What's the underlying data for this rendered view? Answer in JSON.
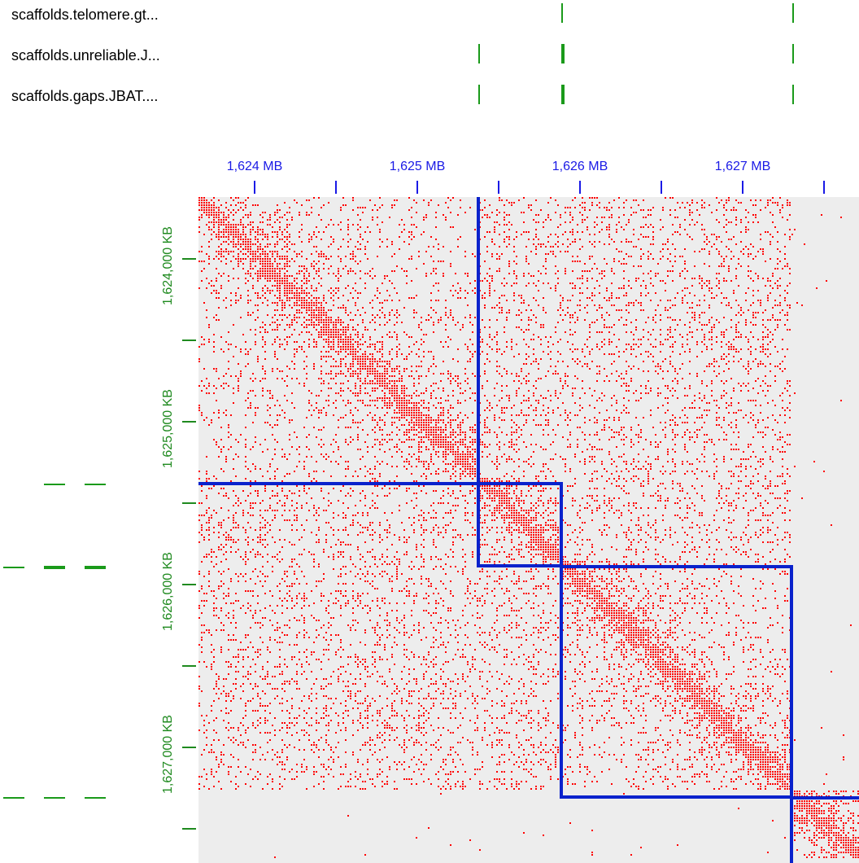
{
  "tracks": [
    {
      "label": "scaffolds.telomere.gt..."
    },
    {
      "label": "scaffolds.unreliable.J..."
    },
    {
      "label": "scaffolds.gaps.JBAT...."
    }
  ],
  "x_axis": {
    "labels": [
      "1,624 MB",
      "1,625 MB",
      "1,626 MB",
      "1,627 MB"
    ]
  },
  "y_axis": {
    "labels": [
      "1,624,000 KB",
      "1,625,000 KB",
      "1,626,000 KB",
      "1,627,000 KB"
    ]
  },
  "colors": {
    "contact": "#ff0000",
    "background": "#ededed",
    "scaffold_border": "#0a22cc",
    "track_feature": "#1a9a1a",
    "x_axis": "#1a1ae6",
    "y_axis": "#1f8a1f"
  }
}
